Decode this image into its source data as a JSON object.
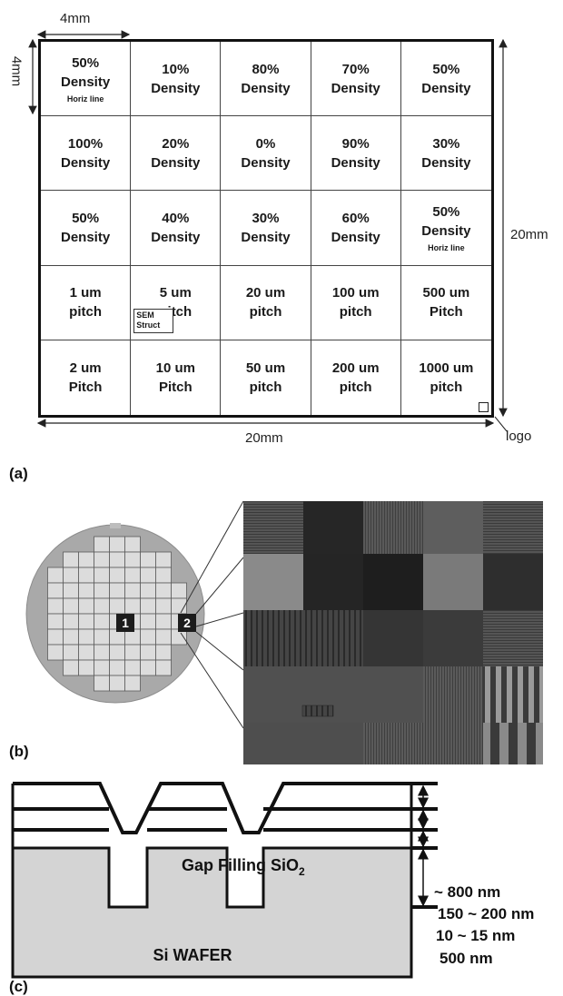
{
  "panel_a": {
    "top_dim": "4mm",
    "left_dim": "4mm",
    "right_dim": "20mm",
    "bottom_dim": "20mm",
    "logo": "logo",
    "cells": [
      {
        "l1": "50%",
        "l2": "Density",
        "note": "Horiz line"
      },
      {
        "l1": "10%",
        "l2": "Density"
      },
      {
        "l1": "80%",
        "l2": "Density"
      },
      {
        "l1": "70%",
        "l2": "Density"
      },
      {
        "l1": "50%",
        "l2": "Density"
      },
      {
        "l1": "100%",
        "l2": "Density"
      },
      {
        "l1": "20%",
        "l2": "Density"
      },
      {
        "l1": "0%",
        "l2": "Density"
      },
      {
        "l1": "90%",
        "l2": "Density"
      },
      {
        "l1": "30%",
        "l2": "Density"
      },
      {
        "l1": "50%",
        "l2": "Density"
      },
      {
        "l1": "40%",
        "l2": "Density"
      },
      {
        "l1": "30%",
        "l2": "Density"
      },
      {
        "l1": "60%",
        "l2": "Density"
      },
      {
        "l1": "50%",
        "l2": "Density",
        "note": "Horiz line"
      },
      {
        "l1": "1 um",
        "l2": "pitch"
      },
      {
        "l1": "5 um",
        "l2": "pitch",
        "sem": "SEM Struct"
      },
      {
        "l1": "20 um",
        "l2": "pitch"
      },
      {
        "l1": "100 um",
        "l2": "pitch"
      },
      {
        "l1": "500 um",
        "l2": "Pitch"
      },
      {
        "l1": "2 um",
        "l2": "Pitch"
      },
      {
        "l1": "10 um",
        "l2": "Pitch"
      },
      {
        "l1": "50 um",
        "l2": "pitch"
      },
      {
        "l1": "200 um",
        "l2": "pitch"
      },
      {
        "l1": "1000 um",
        "l2": "pitch"
      }
    ],
    "label": "(a)"
  },
  "panel_b": {
    "die1": "1",
    "die2": "2",
    "label": "(b)"
  },
  "panel_c": {
    "oxide_label": "Gap Filling SiO",
    "oxide_sub": "2",
    "wafer_label": "Si WAFER",
    "dims": [
      "~ 800 nm",
      "150 ~ 200 nm",
      "10  ~ 15 nm",
      "500 nm"
    ],
    "label": "(c)"
  }
}
